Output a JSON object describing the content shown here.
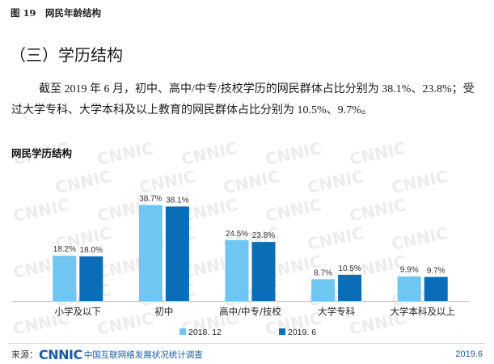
{
  "header": {
    "figure_caption": "图 19　网民年龄结构"
  },
  "section": {
    "title": "（三）学历结构",
    "paragraph": {
      "line_1": "截至 2019 年 6 月，初中、高中/中专/技校学历的网民群体占比分别为 38.1%、23.8%；受",
      "line_2": "过大学专科、大学本科及以上教育的网民群体占比分别为 10.5%、9.7%。"
    }
  },
  "chart_data": {
    "type": "bar",
    "title": "网民学历结构",
    "xlabel": "",
    "ylabel": "",
    "categories": [
      "小学及以下",
      "初中",
      "高中/中专/技校",
      "大学专科",
      "大学本科及以上"
    ],
    "series": [
      {
        "name": "2018. 12",
        "color": "#6ec6f1",
        "values": [
          18.2,
          38.7,
          24.5,
          8.7,
          9.9
        ],
        "labels": [
          "18.2%",
          "38.7%",
          "24.5%",
          "8.7%",
          "9.9%"
        ]
      },
      {
        "name": "2019. 6",
        "color": "#0a6db8",
        "values": [
          18.0,
          38.1,
          23.8,
          10.5,
          9.7
        ],
        "labels": [
          "18.0%",
          "38.1%",
          "23.8%",
          "10.5%",
          "9.7%"
        ]
      }
    ],
    "ylim": [
      0,
      47
    ],
    "grid": false,
    "legend_position": "bottom-center"
  },
  "watermark_text": "CNNIC",
  "footer": {
    "source_label": "来源：",
    "logo_text": "CNNIC",
    "org_name": "中国互联网络发展状况统计调查",
    "date": "2019.6"
  },
  "colors": {
    "brand": "#1b5ca8",
    "axis": "#bfbfbf"
  }
}
